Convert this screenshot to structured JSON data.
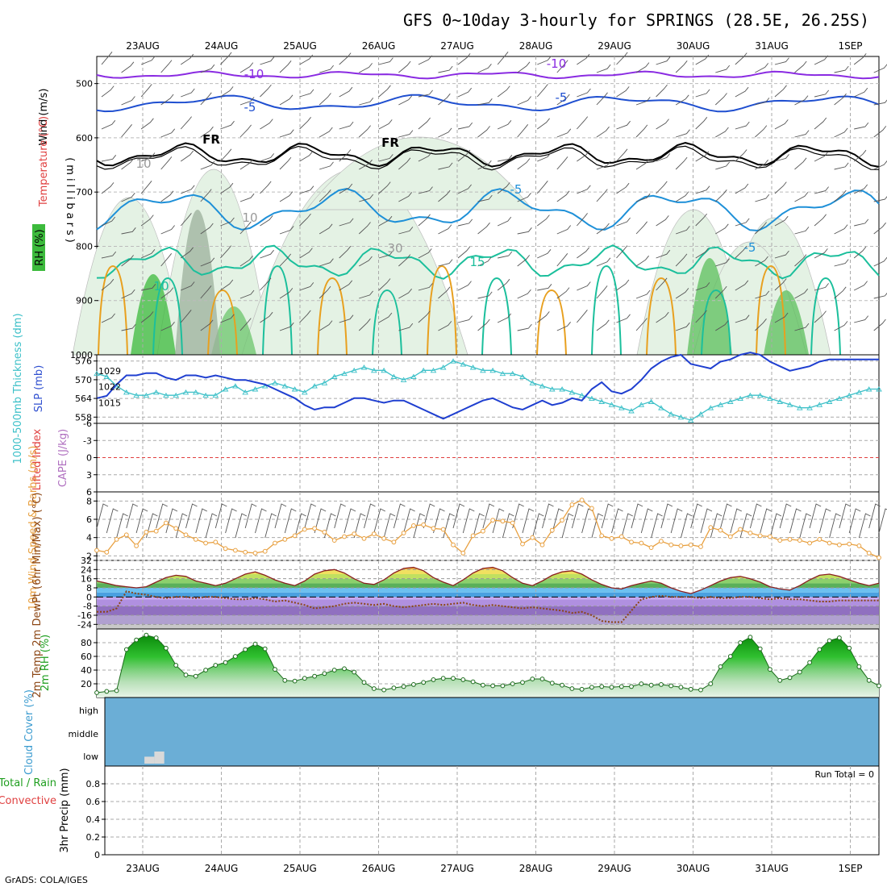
{
  "title": "GFS 0~10day 3-hourly for SPRINGS (28.5E, 26.25S)",
  "credit": "GrADS: COLA/IGES",
  "dates": [
    "23AUG",
    "24AUG",
    "25AUG",
    "26AUG",
    "27AUG",
    "28AUG",
    "29AUG",
    "30AUG",
    "31AUG",
    "1SEP"
  ],
  "colors": {
    "temp_cold": "#8a2be2",
    "temp_blue": "#1f4fd0",
    "temp_fr": "#000000",
    "temp_light": "#1e90d8",
    "temp_teal": "#1bbf9c",
    "temp_orange": "#e8a01f",
    "thickness": "#3cc0c8",
    "slp": "#1f3fd0",
    "wind10": "#e8a040",
    "rh2m": "#1e9e1e",
    "cloud": "#6baed6",
    "barb": "#555555",
    "dewpt": "#8b4513"
  },
  "chart_data": [
    {
      "type": "heatmap",
      "name_label": "Wind (m/s)",
      "ylabel_rh": "RH (%)",
      "ylabel_temp": "Temperature (°C)",
      "ylabel_wind": "Wind (m/s)",
      "yaxis_label": "(millibars)",
      "ytick_labels": [
        "500",
        "600",
        "700",
        "800",
        "900",
        "1000"
      ],
      "ylim": [
        450,
        1000
      ],
      "contour_labels": [
        "-10",
        "-10",
        "-5",
        "-5",
        "FR",
        "FR",
        "-5",
        "-5",
        "15",
        "10",
        "30",
        "10",
        "10"
      ]
    },
    {
      "type": "line",
      "ylabel": "1000-500mb Thickness (dm)",
      "ylabel2": "SLP (mb)",
      "thickness_ticks": [
        "576",
        "570",
        "564",
        "558"
      ],
      "slp_ticks": [
        "1029",
        "1022",
        "1015"
      ],
      "series": [
        {
          "name": "1000-500mb Thickness",
          "values": [
            572,
            571,
            568,
            566,
            565,
            565,
            566,
            565,
            565,
            566,
            566,
            565,
            565,
            567,
            568,
            566,
            567,
            568,
            569,
            568,
            567,
            566,
            568,
            569,
            571,
            572,
            573,
            574,
            573,
            573,
            571,
            570,
            571,
            573,
            573,
            574,
            576,
            575,
            574,
            573,
            573,
            572,
            572,
            571,
            569,
            568,
            567,
            567,
            566,
            565,
            564,
            563,
            562,
            561,
            560,
            562,
            563,
            561,
            559,
            558,
            557,
            559,
            561,
            562,
            563,
            564,
            565,
            565,
            564,
            563,
            562,
            561,
            561,
            562,
            563,
            564,
            565,
            566,
            567,
            567
          ]
        },
        {
          "name": "SLP",
          "values": [
            1017,
            1018,
            1023,
            1027,
            1027,
            1028,
            1028,
            1026,
            1025,
            1027,
            1027,
            1026,
            1027,
            1026,
            1025,
            1025,
            1024,
            1023,
            1021,
            1019,
            1017,
            1014,
            1012,
            1013,
            1013,
            1015,
            1017,
            1017,
            1016,
            1015,
            1016,
            1016,
            1014,
            1012,
            1010,
            1008,
            1010,
            1012,
            1014,
            1016,
            1017,
            1015,
            1013,
            1012,
            1014,
            1016,
            1014,
            1015,
            1017,
            1016,
            1021,
            1024,
            1020,
            1019,
            1021,
            1025,
            1030,
            1033,
            1035,
            1036,
            1032,
            1031,
            1030,
            1033,
            1034,
            1036,
            1037,
            1036,
            1033,
            1031,
            1029,
            1030,
            1031,
            1033,
            1034,
            1034,
            1034,
            1034,
            1034,
            1034
          ]
        }
      ]
    },
    {
      "type": "line",
      "ylabel": "Lifted Index",
      "ylabel2": "CAPE (J/kg)",
      "ytick_labels": [
        "-6",
        "-3",
        "0",
        "3",
        "6"
      ],
      "series": []
    },
    {
      "type": "line",
      "ylabel": "10m Wind Speed & Barbs (m/s)",
      "ytick_labels": [
        "8",
        "6",
        "4",
        "2"
      ],
      "ylim": [
        1.5,
        9
      ],
      "series": [
        {
          "name": "10m Wind Speed",
          "values": [
            2.6,
            2.4,
            3.8,
            4.3,
            3.1,
            4.6,
            4.7,
            5.6,
            5.0,
            4.3,
            3.8,
            3.4,
            3.5,
            2.8,
            2.6,
            2.4,
            2.3,
            2.5,
            3.4,
            3.8,
            4.2,
            4.9,
            5.0,
            4.6,
            3.7,
            4.1,
            4.4,
            3.9,
            4.4,
            3.9,
            3.5,
            4.5,
            5.3,
            5.4,
            5.0,
            4.9,
            3.2,
            2.3,
            4.2,
            4.7,
            5.9,
            5.8,
            5.6,
            3.3,
            4.0,
            3.2,
            4.8,
            5.9,
            7.6,
            8.1,
            7.2,
            4.2,
            3.9,
            4.1,
            3.5,
            3.4,
            2.9,
            3.6,
            3.2,
            3.1,
            3.2,
            3.0,
            5.1,
            4.8,
            4.1,
            4.9,
            4.5,
            4.2,
            4.1,
            3.7,
            3.8,
            3.7,
            3.4,
            3.8,
            3.4,
            3.2,
            3.3,
            3.1,
            2.3,
            1.8
          ]
        }
      ]
    },
    {
      "type": "area",
      "ylabel": "2m Temp 2m DewPt (6hr Min/Max) (°C)",
      "ytick_labels": [
        "32",
        "24",
        "16",
        "8",
        "0",
        "-8",
        "-16",
        "-24"
      ],
      "ylim": [
        -28,
        32
      ],
      "series": [
        {
          "name": "2m Temp",
          "values": [
            14,
            12,
            10,
            9,
            8,
            9,
            13,
            17,
            19,
            18,
            14,
            12,
            10,
            12,
            16,
            20,
            22,
            19,
            15,
            12,
            10,
            14,
            20,
            23,
            24,
            21,
            16,
            12,
            11,
            15,
            21,
            25,
            26,
            23,
            17,
            13,
            10,
            15,
            21,
            25,
            26,
            23,
            17,
            12,
            10,
            14,
            19,
            22,
            23,
            20,
            15,
            11,
            8,
            7,
            10,
            12,
            14,
            12,
            8,
            5,
            3,
            6,
            10,
            14,
            17,
            18,
            16,
            13,
            9,
            7,
            6,
            10,
            15,
            19,
            20,
            18,
            15,
            12,
            10,
            12
          ]
        },
        {
          "name": "2m DewPt",
          "values": [
            -13,
            -13,
            -10,
            5,
            3,
            2,
            0,
            -1,
            0,
            0,
            -1,
            0,
            0,
            -1,
            -2,
            -2,
            -1,
            -2,
            -4,
            -3,
            -5,
            -7,
            -10,
            -9,
            -8,
            -6,
            -5,
            -6,
            -7,
            -6,
            -8,
            -9,
            -8,
            -7,
            -6,
            -7,
            -6,
            -5,
            -7,
            -8,
            -7,
            -8,
            -9,
            -10,
            -9,
            -10,
            -11,
            -12,
            -14,
            -13,
            -16,
            -21,
            -22,
            -22,
            -12,
            -2,
            0,
            1,
            0,
            0,
            0,
            -1,
            0,
            -1,
            -1,
            0,
            0,
            -1,
            -2,
            -1,
            -2,
            -2,
            -3,
            -4,
            -4,
            -3,
            -3,
            -3,
            -3,
            -3
          ]
        }
      ]
    },
    {
      "type": "area",
      "ylabel": "2m RH (%)",
      "ytick_labels": [
        "80",
        "60",
        "40",
        "20"
      ],
      "ylim": [
        0,
        100
      ],
      "series": [
        {
          "name": "2m RH",
          "values": [
            7,
            9,
            10,
            70,
            84,
            91,
            87,
            72,
            47,
            33,
            31,
            40,
            47,
            51,
            60,
            70,
            78,
            71,
            41,
            25,
            24,
            28,
            31,
            35,
            40,
            42,
            37,
            22,
            13,
            11,
            14,
            16,
            19,
            22,
            26,
            28,
            28,
            26,
            23,
            18,
            17,
            17,
            20,
            22,
            27,
            27,
            21,
            18,
            13,
            12,
            15,
            16,
            15,
            16,
            16,
            20,
            18,
            19,
            17,
            15,
            12,
            11,
            20,
            45,
            60,
            80,
            88,
            71,
            41,
            25,
            29,
            37,
            51,
            70,
            83,
            87,
            72,
            45,
            25,
            17
          ]
        }
      ]
    },
    {
      "type": "bar",
      "ylabel": "Cloud Cover (%)",
      "categories": [
        "high",
        "middle",
        "low"
      ],
      "low_cloud_blocks": [
        {
          "start_index": 4,
          "values": [
            20,
            35
          ]
        }
      ]
    },
    {
      "type": "bar",
      "ylabel": "3hr Precip (mm)",
      "legend": [
        "Total / Rain",
        "Convective"
      ],
      "run_total_label": "Run Total = 0",
      "ytick_labels": [
        "0.8",
        "0.6",
        "0.4",
        "0.2",
        "0"
      ],
      "ylim": [
        0,
        1
      ]
    }
  ]
}
